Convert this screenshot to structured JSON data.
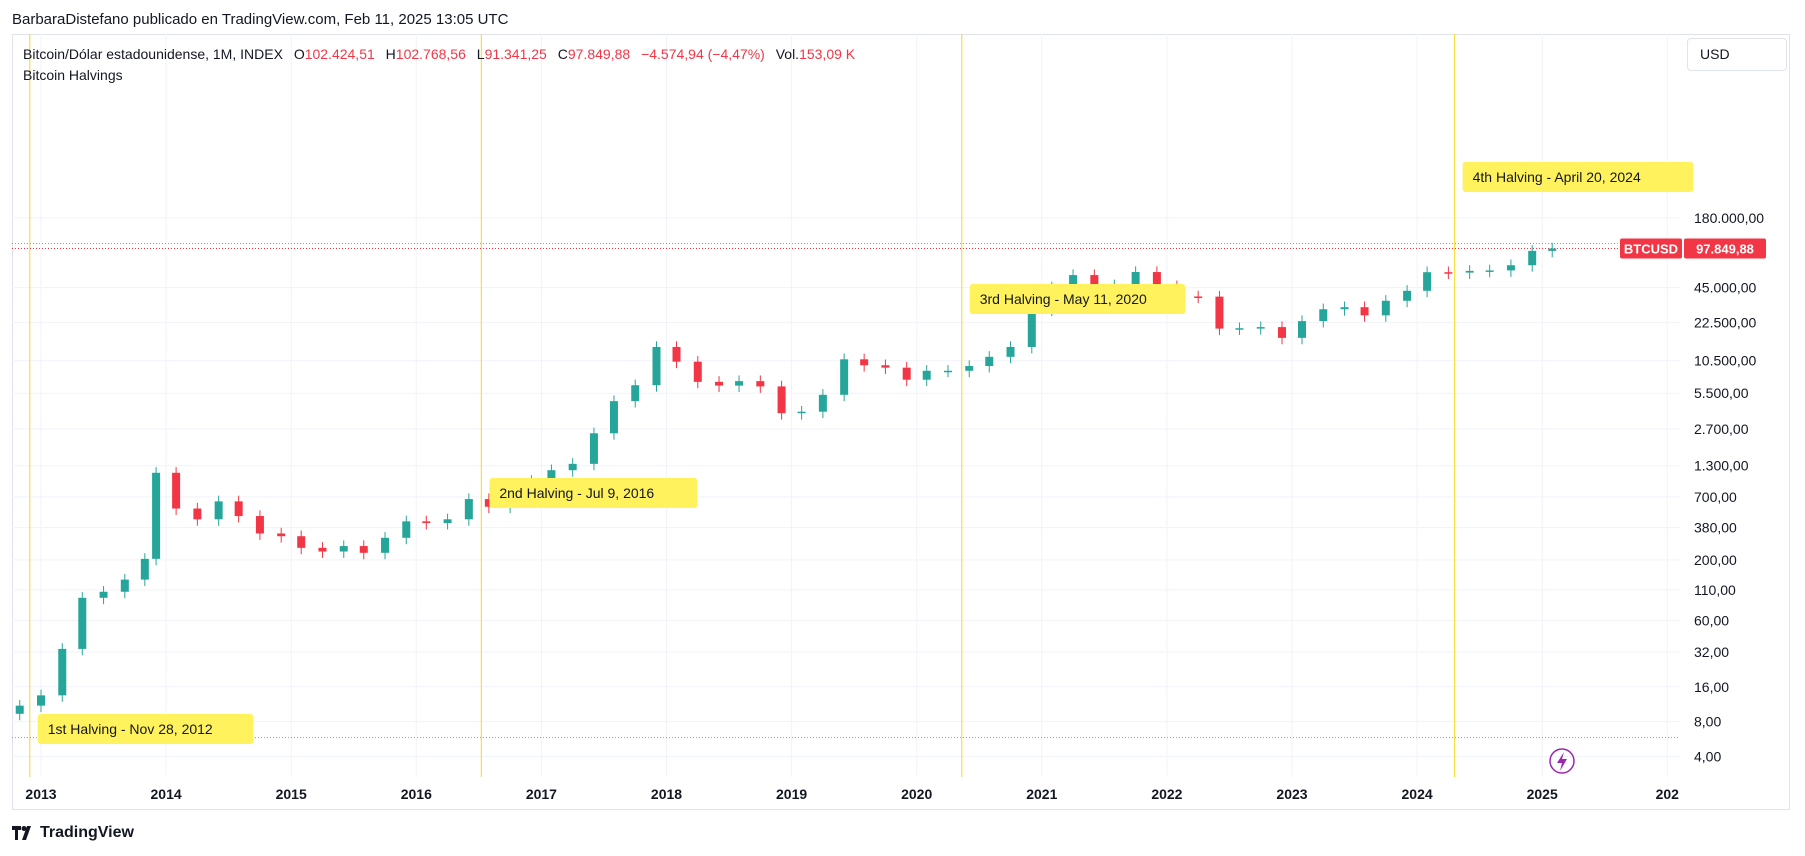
{
  "header": {
    "publisher_line": "BarbaraDistefano publicado en TradingView.com, Feb 11, 2025 13:05 UTC"
  },
  "legend": {
    "symbol": "Bitcoin/Dólar estadounidense, 1M, INDEX",
    "open_label": "O",
    "open": "102.424,51",
    "high_label": "H",
    "high": "102.768,56",
    "low_label": "L",
    "low": "91.341,25",
    "close_label": "C",
    "close": "97.849,88",
    "change": "−4.574,94 (−4,47%)",
    "vol_label": "Vol.",
    "volume": "153,09 K",
    "indicator": "Bitcoin Halvings"
  },
  "currency": "USD",
  "price_badge": {
    "symbol": "BTCUSD",
    "price": "97.849,88"
  },
  "footer": {
    "brand": "TradingView"
  },
  "colors": {
    "up": "#26a69a",
    "down": "#f23645",
    "halving_line": "#f7e03c",
    "halving_label_bg": "#fff25c"
  },
  "chart_data": {
    "type": "candlestick",
    "interval": "1M",
    "scale": "log",
    "y_ticks": [
      "180.000,00",
      "45.000,00",
      "22.500,00",
      "10.500,00",
      "5.500,00",
      "2.700,00",
      "1.300,00",
      "700,00",
      "380,00",
      "200,00",
      "110,00",
      "60,00",
      "32,00",
      "16,00",
      "8,00",
      "4,00"
    ],
    "x_ticks": [
      "2013",
      "2014",
      "2015",
      "2016",
      "2017",
      "2018",
      "2019",
      "2020",
      "2021",
      "2022",
      "2023",
      "2024",
      "2025",
      "202"
    ],
    "halvings": [
      {
        "label": "1st Halving - Nov 28, 2012",
        "date": 2012.91
      },
      {
        "label": "2nd Halving - Jul 9, 2016",
        "date": 2016.52
      },
      {
        "label": "3rd Halving - May 11, 2020",
        "date": 2020.36
      },
      {
        "label": "4th Halving - April 20, 2024",
        "date": 2024.3
      }
    ],
    "price_points": [
      [
        2012.83,
        11
      ],
      [
        2013.0,
        13.5
      ],
      [
        2013.17,
        34
      ],
      [
        2013.33,
        94
      ],
      [
        2013.5,
        106
      ],
      [
        2013.67,
        135
      ],
      [
        2013.83,
        204
      ],
      [
        2013.92,
        1130
      ],
      [
        2014.08,
        555
      ],
      [
        2014.25,
        448
      ],
      [
        2014.42,
        640
      ],
      [
        2014.58,
        478
      ],
      [
        2014.75,
        338
      ],
      [
        2014.92,
        320
      ],
      [
        2015.08,
        254
      ],
      [
        2015.25,
        236
      ],
      [
        2015.42,
        263
      ],
      [
        2015.58,
        230
      ],
      [
        2015.75,
        310
      ],
      [
        2015.92,
        430
      ],
      [
        2016.08,
        416
      ],
      [
        2016.25,
        448
      ],
      [
        2016.42,
        670
      ],
      [
        2016.58,
        575
      ],
      [
        2016.75,
        700
      ],
      [
        2016.92,
        963
      ],
      [
        2017.08,
        1190
      ],
      [
        2017.25,
        1350
      ],
      [
        2017.42,
        2480
      ],
      [
        2017.58,
        4700
      ],
      [
        2017.75,
        6450
      ],
      [
        2017.92,
        13800
      ],
      [
        2018.08,
        10300
      ],
      [
        2018.25,
        6900
      ],
      [
        2018.42,
        6400
      ],
      [
        2018.58,
        7000
      ],
      [
        2018.75,
        6300
      ],
      [
        2018.92,
        3700
      ],
      [
        2019.08,
        3810
      ],
      [
        2019.25,
        5330
      ],
      [
        2019.42,
        10800
      ],
      [
        2019.58,
        9600
      ],
      [
        2019.75,
        9150
      ],
      [
        2019.92,
        7200
      ],
      [
        2020.08,
        8600
      ],
      [
        2020.25,
        8600
      ],
      [
        2020.42,
        9450
      ],
      [
        2020.58,
        11350
      ],
      [
        2020.75,
        13800
      ],
      [
        2020.92,
        29000
      ],
      [
        2021.08,
        45200
      ],
      [
        2021.25,
        57700
      ],
      [
        2021.42,
        35000
      ],
      [
        2021.58,
        47100
      ],
      [
        2021.75,
        61300
      ],
      [
        2021.92,
        46300
      ],
      [
        2022.08,
        37700
      ],
      [
        2022.25,
        37600
      ],
      [
        2022.42,
        19900
      ],
      [
        2022.58,
        20050
      ],
      [
        2022.75,
        20500
      ],
      [
        2022.92,
        16550
      ],
      [
        2023.08,
        23100
      ],
      [
        2023.25,
        29250
      ],
      [
        2023.42,
        30450
      ],
      [
        2023.58,
        25900
      ],
      [
        2023.75,
        34600
      ],
      [
        2023.92,
        42200
      ],
      [
        2024.08,
        61100
      ],
      [
        2024.25,
        60600
      ],
      [
        2024.42,
        62700
      ],
      [
        2024.58,
        63300
      ],
      [
        2024.75,
        70200
      ],
      [
        2024.92,
        93400
      ],
      [
        2025.08,
        97849
      ]
    ],
    "last_price": 97849.88
  }
}
